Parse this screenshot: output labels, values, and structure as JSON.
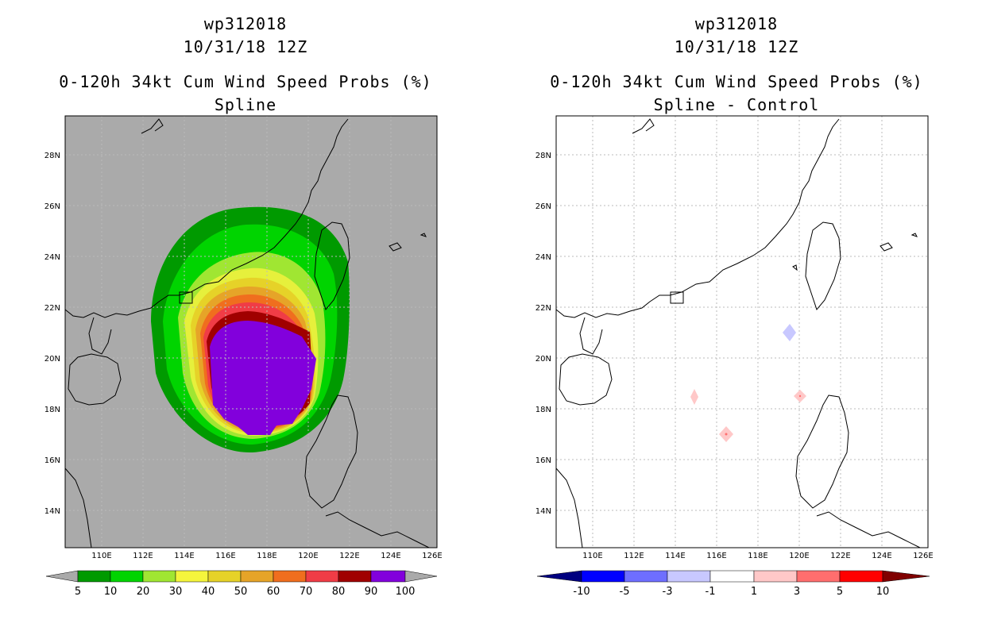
{
  "left_panel": {
    "title_storm": "wp312018",
    "title_date": "10/31/18 12Z",
    "title_product": "0-120h 34kt Cum Wind Speed Probs (%)",
    "title_method": "Spline",
    "colorbar": {
      "labels": [
        "5",
        "10",
        "20",
        "30",
        "40",
        "50",
        "60",
        "70",
        "80",
        "90",
        "100"
      ],
      "colors": [
        "#009a00",
        "#00d400",
        "#00f000",
        "#a0e632",
        "#e6f03c",
        "#e6d228",
        "#e6a428",
        "#f06e1e",
        "#f03c46",
        "#a00000",
        "#8200dc"
      ]
    }
  },
  "right_panel": {
    "title_storm": "wp312018",
    "title_date": "10/31/18 12Z",
    "title_product": "0-120h 34kt Cum Wind Speed Probs (%)",
    "title_method": "Spline - Control",
    "colorbar": {
      "labels": [
        "-10",
        "-5",
        "-3",
        "-1",
        "1",
        "3",
        "5",
        "10"
      ],
      "colors": [
        "#000080",
        "#0000ff",
        "#6e6eff",
        "#c8c8ff",
        "#ffffff",
        "#ffc8c8",
        "#ff6e6e",
        "#ff0000",
        "#800000"
      ]
    }
  },
  "axes": {
    "lat_labels": [
      "28N",
      "26N",
      "24N",
      "22N",
      "20N",
      "18N",
      "16N",
      "14N"
    ],
    "lon_labels": [
      "110E",
      "112E",
      "114E",
      "116E",
      "118E",
      "120E",
      "122E",
      "124E",
      "126E"
    ]
  },
  "map_colors": {
    "land_mask": "#aaaaaa",
    "coastline": "#000000",
    "grid": "#aaaaaa"
  }
}
